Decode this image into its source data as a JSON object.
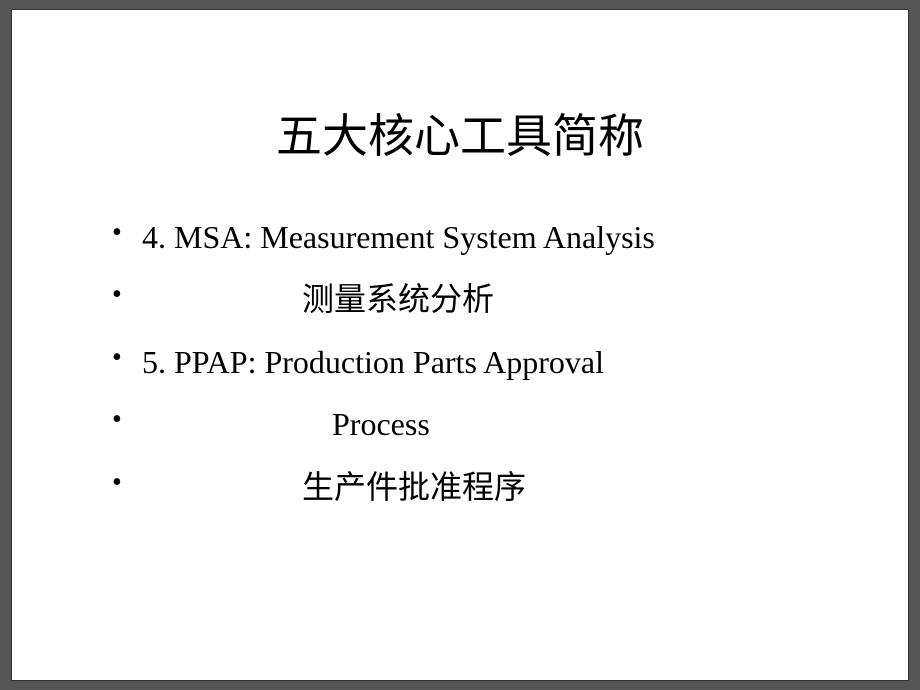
{
  "slide": {
    "title": "五大核心工具简称",
    "bullets": [
      {
        "text": "4. MSA: Measurement  System Analysis",
        "indent_class": ""
      },
      {
        "text": "测量系统分析",
        "indent_class": "indent-1"
      },
      {
        "text": "5. PPAP: Production Parts Approval",
        "indent_class": ""
      },
      {
        "text": "Process",
        "indent_class": "indent-2"
      },
      {
        "text": "生产件批准程序",
        "indent_class": "indent-1"
      }
    ],
    "styling": {
      "background_color": "#ffffff",
      "outer_background": "#555555",
      "title_fontsize": 46,
      "body_fontsize": 32,
      "text_color": "#000000",
      "title_color": "#000000",
      "border_color": "#333333",
      "line_height": 1.95
    }
  }
}
